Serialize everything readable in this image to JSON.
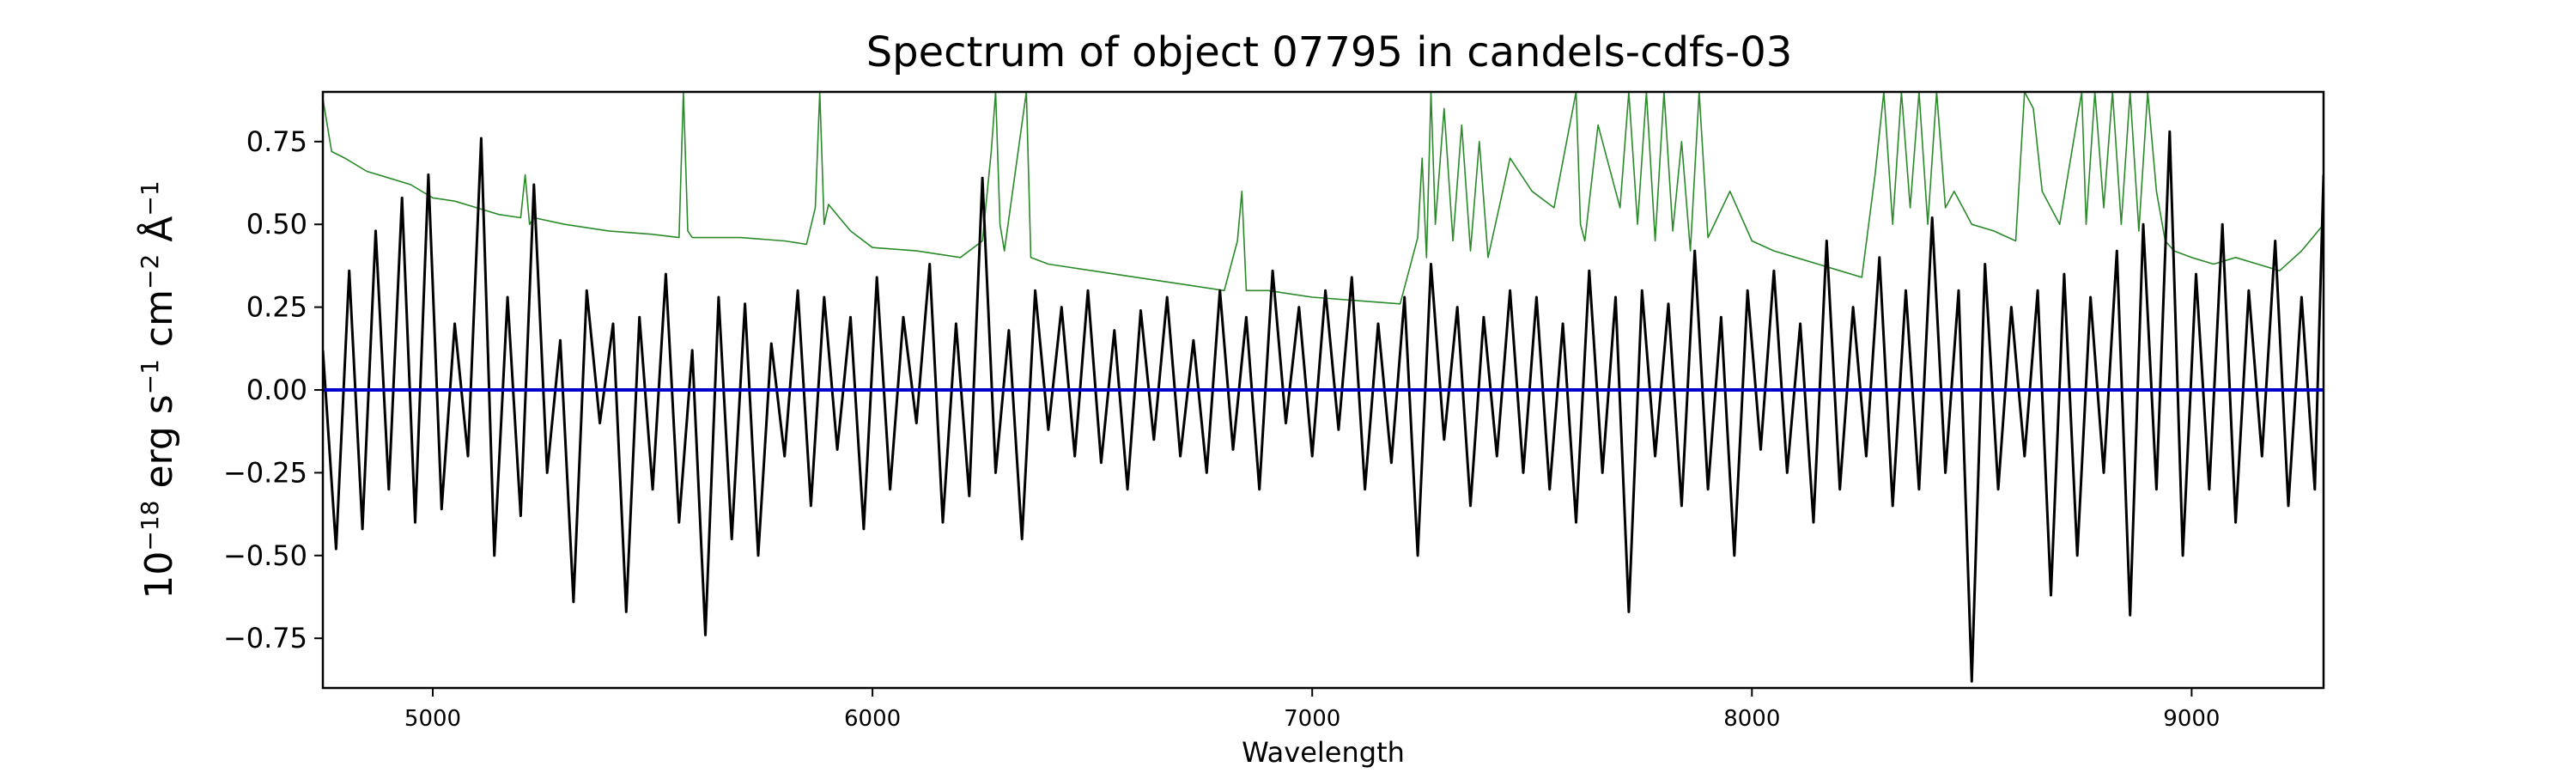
{
  "chart_data": {
    "type": "line",
    "title": "Spectrum of object 07795 in candels-cdfs-03",
    "xlabel": "Wavelength",
    "ylabel": {
      "base": "10",
      "exp_scale": "−18",
      "erg": " erg s",
      "exp_s": "−1",
      "cm": " cm",
      "exp_cm": "−2",
      "angstrom": " Å",
      "exp_a": "−1"
    },
    "xlim": [
      4750,
      9300
    ],
    "ylim": [
      -0.9,
      0.9
    ],
    "xticks": [
      5000,
      6000,
      7000,
      8000,
      9000
    ],
    "xtick_labels": [
      "5000",
      "6000",
      "7000",
      "8000",
      "9000"
    ],
    "yticks": [
      0.75,
      0.5,
      0.25,
      0.0,
      -0.25,
      -0.5,
      -0.75
    ],
    "ytick_labels": [
      "0.75",
      "0.50",
      "0.25",
      "0.00",
      "−0.25",
      "−0.50",
      "−0.75"
    ],
    "grid": false,
    "series": [
      {
        "role": "flux",
        "color": "#000000",
        "x": [
          4750,
          4780,
          4810,
          4840,
          4870,
          4900,
          4930,
          4960,
          4990,
          5020,
          5050,
          5080,
          5110,
          5140,
          5170,
          5200,
          5230,
          5260,
          5290,
          5320,
          5350,
          5380,
          5410,
          5440,
          5470,
          5500,
          5530,
          5560,
          5590,
          5620,
          5650,
          5680,
          5710,
          5740,
          5770,
          5800,
          5830,
          5860,
          5890,
          5920,
          5950,
          5980,
          6010,
          6040,
          6070,
          6100,
          6130,
          6160,
          6190,
          6220,
          6250,
          6280,
          6310,
          6340,
          6370,
          6400,
          6430,
          6460,
          6490,
          6520,
          6550,
          6580,
          6610,
          6640,
          6670,
          6700,
          6730,
          6760,
          6790,
          6820,
          6850,
          6880,
          6910,
          6940,
          6970,
          7000,
          7030,
          7060,
          7090,
          7120,
          7150,
          7180,
          7210,
          7240,
          7270,
          7300,
          7330,
          7360,
          7390,
          7420,
          7450,
          7480,
          7510,
          7540,
          7570,
          7600,
          7630,
          7660,
          7690,
          7720,
          7750,
          7780,
          7810,
          7840,
          7870,
          7900,
          7930,
          7960,
          7990,
          8020,
          8050,
          8080,
          8110,
          8140,
          8170,
          8200,
          8230,
          8260,
          8290,
          8320,
          8350,
          8380,
          8410,
          8440,
          8470,
          8500,
          8530,
          8560,
          8590,
          8620,
          8650,
          8680,
          8710,
          8740,
          8770,
          8800,
          8830,
          8860,
          8890,
          8920,
          8950,
          8980,
          9010,
          9040,
          9070,
          9100,
          9130,
          9160,
          9190,
          9220,
          9250,
          9280,
          9300
        ],
        "y": [
          0.12,
          -0.48,
          0.36,
          -0.42,
          0.48,
          -0.3,
          0.58,
          -0.4,
          0.65,
          -0.36,
          0.2,
          -0.2,
          0.76,
          -0.5,
          0.28,
          -0.38,
          0.62,
          -0.25,
          0.15,
          -0.64,
          0.3,
          -0.1,
          0.2,
          -0.67,
          0.22,
          -0.3,
          0.35,
          -0.4,
          0.12,
          -0.74,
          0.28,
          -0.45,
          0.26,
          -0.5,
          0.14,
          -0.2,
          0.3,
          -0.35,
          0.28,
          -0.18,
          0.22,
          -0.42,
          0.34,
          -0.3,
          0.22,
          -0.1,
          0.38,
          -0.4,
          0.2,
          -0.32,
          0.64,
          -0.25,
          0.18,
          -0.45,
          0.3,
          -0.12,
          0.25,
          -0.2,
          0.3,
          -0.22,
          0.18,
          -0.3,
          0.24,
          -0.15,
          0.28,
          -0.2,
          0.15,
          -0.25,
          0.3,
          -0.18,
          0.22,
          -0.3,
          0.36,
          -0.1,
          0.25,
          -0.2,
          0.3,
          -0.12,
          0.34,
          -0.3,
          0.2,
          -0.22,
          0.28,
          -0.5,
          0.38,
          -0.15,
          0.25,
          -0.35,
          0.22,
          -0.2,
          0.3,
          -0.25,
          0.28,
          -0.3,
          0.2,
          -0.4,
          0.36,
          -0.25,
          0.28,
          -0.67,
          0.3,
          -0.2,
          0.26,
          -0.35,
          0.42,
          -0.3,
          0.22,
          -0.5,
          0.3,
          -0.18,
          0.36,
          -0.25,
          0.2,
          -0.4,
          0.45,
          -0.3,
          0.25,
          -0.2,
          0.4,
          -0.35,
          0.3,
          -0.3,
          0.52,
          -0.25,
          0.3,
          -0.88,
          0.38,
          -0.3,
          0.25,
          -0.2,
          0.3,
          -0.62,
          0.35,
          -0.5,
          0.28,
          -0.25,
          0.42,
          -0.68,
          0.5,
          -0.3,
          0.78,
          -0.5,
          0.35,
          -0.3,
          0.5,
          -0.4,
          0.3,
          -0.2,
          0.45,
          -0.35,
          0.28,
          -0.3,
          0.65
        ]
      },
      {
        "role": "error",
        "color": "#2a8a2a",
        "x": [
          4750,
          4770,
          4800,
          4850,
          4900,
          4950,
          5000,
          5050,
          5100,
          5150,
          5200,
          5210,
          5220,
          5230,
          5300,
          5400,
          5500,
          5560,
          5570,
          5580,
          5590,
          5700,
          5800,
          5850,
          5870,
          5880,
          5890,
          5900,
          5950,
          6000,
          6100,
          6200,
          6250,
          6270,
          6280,
          6290,
          6300,
          6350,
          6360,
          6400,
          6500,
          6600,
          6700,
          6800,
          6830,
          6840,
          6850,
          6900,
          7000,
          7100,
          7200,
          7240,
          7250,
          7260,
          7270,
          7280,
          7300,
          7320,
          7340,
          7360,
          7380,
          7400,
          7450,
          7500,
          7550,
          7600,
          7610,
          7620,
          7650,
          7700,
          7720,
          7740,
          7760,
          7780,
          7800,
          7820,
          7840,
          7860,
          7880,
          7900,
          7950,
          8000,
          8050,
          8100,
          8150,
          8200,
          8250,
          8280,
          8300,
          8320,
          8340,
          8360,
          8380,
          8400,
          8420,
          8440,
          8460,
          8500,
          8550,
          8600,
          8620,
          8640,
          8660,
          8700,
          8750,
          8760,
          8780,
          8800,
          8820,
          8840,
          8860,
          8880,
          8900,
          8920,
          8940,
          8960,
          9000,
          9050,
          9100,
          9150,
          9200,
          9250,
          9300
        ],
        "y": [
          0.88,
          0.72,
          0.7,
          0.66,
          0.64,
          0.62,
          0.58,
          0.57,
          0.55,
          0.53,
          0.52,
          0.65,
          0.5,
          0.52,
          0.5,
          0.48,
          0.47,
          0.46,
          0.9,
          0.48,
          0.46,
          0.46,
          0.45,
          0.44,
          0.55,
          0.9,
          0.5,
          0.56,
          0.48,
          0.43,
          0.42,
          0.4,
          0.45,
          0.72,
          0.9,
          0.5,
          0.42,
          0.9,
          0.4,
          0.38,
          0.36,
          0.34,
          0.32,
          0.3,
          0.45,
          0.6,
          0.3,
          0.3,
          0.28,
          0.27,
          0.26,
          0.46,
          0.7,
          0.4,
          0.9,
          0.5,
          0.85,
          0.45,
          0.8,
          0.42,
          0.75,
          0.4,
          0.7,
          0.6,
          0.55,
          0.9,
          0.5,
          0.45,
          0.8,
          0.55,
          0.9,
          0.5,
          0.9,
          0.45,
          0.9,
          0.48,
          0.75,
          0.42,
          0.9,
          0.46,
          0.6,
          0.45,
          0.42,
          0.4,
          0.38,
          0.36,
          0.34,
          0.65,
          0.9,
          0.5,
          0.9,
          0.55,
          0.9,
          0.5,
          0.9,
          0.55,
          0.6,
          0.5,
          0.48,
          0.45,
          0.9,
          0.85,
          0.6,
          0.5,
          0.9,
          0.5,
          0.9,
          0.55,
          0.9,
          0.5,
          0.9,
          0.48,
          0.9,
          0.6,
          0.45,
          0.42,
          0.4,
          0.38,
          0.4,
          0.38,
          0.36,
          0.42,
          0.5
        ]
      },
      {
        "role": "model",
        "color": "#0000cc",
        "x": [
          4750,
          9300
        ],
        "y": [
          0.0,
          0.0
        ]
      }
    ]
  }
}
